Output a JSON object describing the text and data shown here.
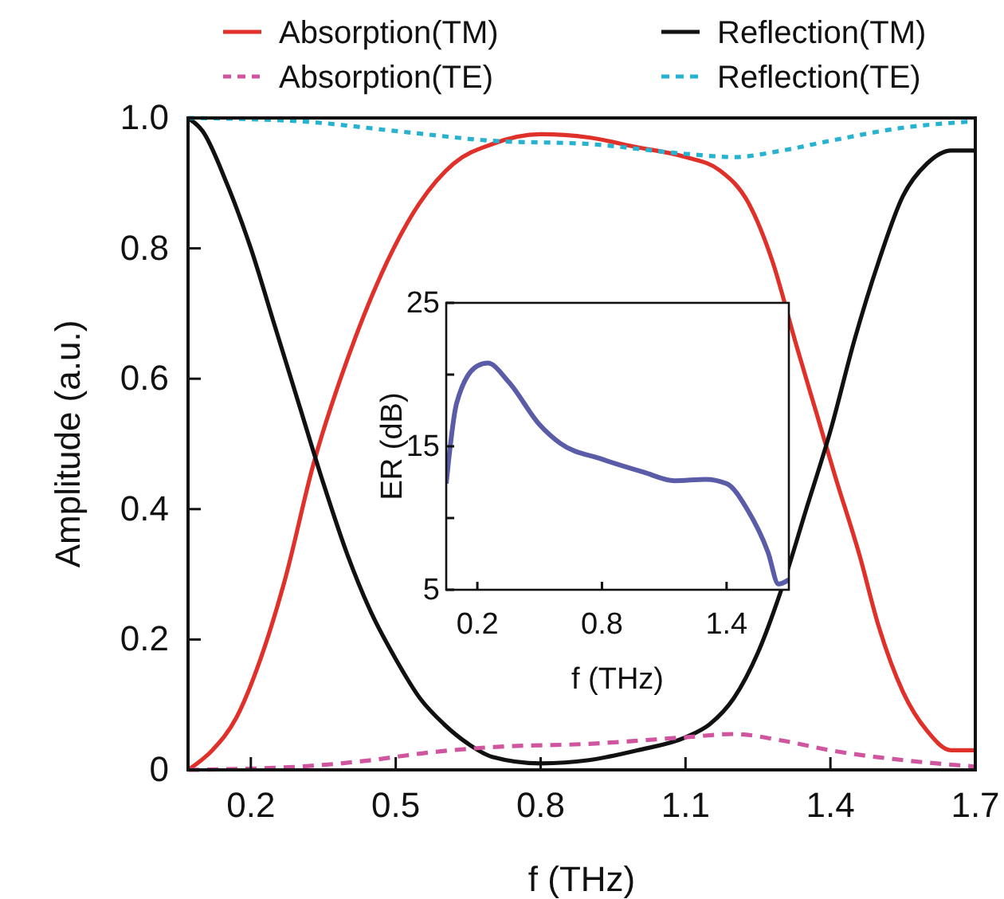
{
  "chart_data": [
    {
      "type": "line",
      "xlabel": "f (THz)",
      "ylabel": "Amplitude (a.u.)",
      "xlim": [
        0.07,
        1.7
      ],
      "xticks": [
        0.2,
        0.5,
        0.8,
        1.1,
        1.4,
        1.7
      ],
      "ylim": [
        0,
        1.0
      ],
      "yticks": [
        0,
        0.2,
        0.4,
        0.6,
        0.8,
        {
          "value": 1.0,
          "label": "1.0"
        }
      ],
      "legend": "top",
      "grid": false,
      "marker": "none",
      "series": [
        {
          "name": "Absorption(TM)",
          "color": "#e0302a",
          "line_style": "solid",
          "x": [
            0.07,
            0.12,
            0.17,
            0.22,
            0.27,
            0.33,
            0.4,
            0.47,
            0.55,
            0.62,
            0.7,
            0.8,
            0.9,
            1.0,
            1.1,
            1.17,
            1.23,
            1.28,
            1.33,
            1.37,
            1.41,
            1.46,
            1.5,
            1.55,
            1.6,
            1.65,
            1.7
          ],
          "values": [
            0,
            0.03,
            0.08,
            0.17,
            0.29,
            0.47,
            0.63,
            0.76,
            0.87,
            0.93,
            0.96,
            0.975,
            0.97,
            0.955,
            0.94,
            0.92,
            0.87,
            0.78,
            0.65,
            0.55,
            0.45,
            0.33,
            0.22,
            0.12,
            0.06,
            0.03,
            0.03
          ]
        },
        {
          "name": "Reflection(TM)",
          "color": "#111111",
          "line_style": "solid",
          "x": [
            0.07,
            0.1,
            0.15,
            0.2,
            0.25,
            0.3,
            0.35,
            0.4,
            0.45,
            0.5,
            0.55,
            0.6,
            0.65,
            0.7,
            0.8,
            0.9,
            1.0,
            1.1,
            1.15,
            1.2,
            1.25,
            1.3,
            1.35,
            1.4,
            1.45,
            1.5,
            1.55,
            1.6,
            1.65,
            1.7
          ],
          "values": [
            1.0,
            0.98,
            0.9,
            0.8,
            0.68,
            0.56,
            0.44,
            0.33,
            0.24,
            0.17,
            0.11,
            0.07,
            0.04,
            0.02,
            0.01,
            0.015,
            0.03,
            0.05,
            0.07,
            0.11,
            0.18,
            0.28,
            0.4,
            0.52,
            0.66,
            0.78,
            0.88,
            0.93,
            0.95,
            0.95
          ]
        },
        {
          "name": "Absorption(TE)",
          "color": "#d0559f",
          "line_style": "dashed",
          "x": [
            0.07,
            0.3,
            0.45,
            0.55,
            0.7,
            0.9,
            1.1,
            1.2,
            1.3,
            1.4,
            1.55,
            1.7
          ],
          "values": [
            0,
            0.005,
            0.015,
            0.025,
            0.035,
            0.04,
            0.05,
            0.055,
            0.045,
            0.03,
            0.015,
            0.005
          ]
        },
        {
          "name": "Reflection(TE)",
          "color": "#27b3cf",
          "line_style": "dotted",
          "x": [
            0.07,
            0.3,
            0.5,
            0.7,
            0.9,
            1.1,
            1.2,
            1.3,
            1.4,
            1.55,
            1.7
          ],
          "values": [
            1.0,
            0.995,
            0.98,
            0.965,
            0.96,
            0.945,
            0.94,
            0.95,
            0.965,
            0.985,
            0.995
          ]
        }
      ]
    },
    {
      "type": "line",
      "xlabel": "f (THz)",
      "ylabel": "ER (dB)",
      "xlim": [
        0.05,
        1.7
      ],
      "xticks": [
        0.2,
        0.8,
        1.4
      ],
      "ylim": [
        5,
        25
      ],
      "yticks": [
        5,
        {
          "value": 10,
          "label": null
        },
        15,
        {
          "value": 20,
          "label": null
        },
        25
      ],
      "legend": false,
      "grid": false,
      "marker": "none",
      "series": [
        {
          "color": "#5a5ca8",
          "line_style": "solid",
          "x": [
            0.05,
            0.1,
            0.2,
            0.25,
            0.35,
            0.5,
            0.6,
            0.8,
            1.0,
            1.15,
            1.3,
            1.4,
            1.5,
            1.6,
            1.65,
            1.7
          ],
          "values": [
            12.4,
            18.0,
            20.6,
            20.8,
            19.5,
            16.5,
            15.2,
            14.1,
            13.2,
            12.6,
            12.7,
            12.4,
            10.6,
            7.6,
            5.4,
            5.7
          ]
        }
      ]
    }
  ]
}
